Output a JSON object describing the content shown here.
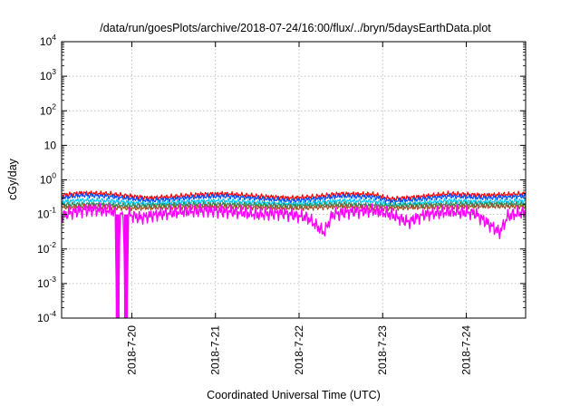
{
  "chart_data": {
    "type": "line",
    "title": "/data/run/goesPlots/archive/2018-07-24/16:00/flux/../bryn/5daysEarthData.plot",
    "xlabel": "Coordinated Universal Time (UTC)",
    "ylabel": "cGy/day",
    "yscale": "log",
    "ylim": [
      0.0001,
      10000
    ],
    "xlim": [
      19.16,
      24.71
    ],
    "grid": true,
    "y_ticks": [
      {
        "value": 0.0001,
        "base": "10",
        "exp": "-4"
      },
      {
        "value": 0.001,
        "base": "10",
        "exp": "-3"
      },
      {
        "value": 0.01,
        "base": "10",
        "exp": "-2"
      },
      {
        "value": 0.1,
        "base": "10",
        "exp": "-1"
      },
      {
        "value": 1,
        "base": "10",
        "exp": "0"
      },
      {
        "value": 10,
        "base": "10",
        "exp": ""
      },
      {
        "value": 100,
        "base": "10",
        "exp": "2"
      },
      {
        "value": 1000,
        "base": "10",
        "exp": "3"
      },
      {
        "value": 10000,
        "base": "10",
        "exp": "4"
      }
    ],
    "x_ticks": [
      {
        "value": 20,
        "label": "2018-7-20"
      },
      {
        "value": 21,
        "label": "2018-7-21"
      },
      {
        "value": 22,
        "label": "2018-7-22"
      },
      {
        "value": 23,
        "label": "2018-7-23"
      },
      {
        "value": 24,
        "label": "2018-7-24"
      }
    ],
    "x_unit": "day of July 2018 (UTC)",
    "series": [
      {
        "color": "#ff0000",
        "values": [
          [
            19.16,
            0.36
          ],
          [
            19.4,
            0.42
          ],
          [
            19.7,
            0.4
          ],
          [
            20.2,
            0.3
          ],
          [
            20.5,
            0.33
          ],
          [
            20.8,
            0.38
          ],
          [
            21.1,
            0.4
          ],
          [
            21.5,
            0.34
          ],
          [
            21.9,
            0.3
          ],
          [
            22.2,
            0.33
          ],
          [
            22.5,
            0.4
          ],
          [
            22.9,
            0.38
          ],
          [
            23.1,
            0.28
          ],
          [
            23.4,
            0.32
          ],
          [
            23.8,
            0.4
          ],
          [
            24.2,
            0.36
          ],
          [
            24.5,
            0.38
          ],
          [
            24.71,
            0.4
          ]
        ]
      },
      {
        "color": "#0050ff",
        "values": [
          [
            19.16,
            0.3
          ],
          [
            19.4,
            0.36
          ],
          [
            19.7,
            0.34
          ],
          [
            20.2,
            0.25
          ],
          [
            20.5,
            0.28
          ],
          [
            20.8,
            0.32
          ],
          [
            21.1,
            0.34
          ],
          [
            21.5,
            0.29
          ],
          [
            21.9,
            0.25
          ],
          [
            22.2,
            0.28
          ],
          [
            22.5,
            0.34
          ],
          [
            22.9,
            0.32
          ],
          [
            23.1,
            0.24
          ],
          [
            23.4,
            0.27
          ],
          [
            23.8,
            0.34
          ],
          [
            24.2,
            0.3
          ],
          [
            24.5,
            0.32
          ],
          [
            24.71,
            0.34
          ]
        ]
      },
      {
        "color": "#00c8ff",
        "values": [
          [
            19.16,
            0.23
          ],
          [
            19.4,
            0.26
          ],
          [
            19.7,
            0.25
          ],
          [
            20.2,
            0.2
          ],
          [
            20.5,
            0.22
          ],
          [
            20.8,
            0.24
          ],
          [
            21.1,
            0.25
          ],
          [
            21.5,
            0.22
          ],
          [
            21.9,
            0.2
          ],
          [
            22.2,
            0.22
          ],
          [
            22.5,
            0.25
          ],
          [
            22.9,
            0.24
          ],
          [
            23.1,
            0.19
          ],
          [
            23.4,
            0.21
          ],
          [
            23.8,
            0.25
          ],
          [
            24.2,
            0.23
          ],
          [
            24.5,
            0.24
          ],
          [
            24.71,
            0.25
          ]
        ]
      },
      {
        "color": "#2e8b57",
        "values": [
          [
            19.16,
            0.19
          ],
          [
            19.5,
            0.2
          ],
          [
            20.0,
            0.18
          ],
          [
            20.5,
            0.19
          ],
          [
            21.0,
            0.2
          ],
          [
            21.5,
            0.19
          ],
          [
            22.0,
            0.18
          ],
          [
            22.5,
            0.2
          ],
          [
            23.0,
            0.18
          ],
          [
            23.5,
            0.19
          ],
          [
            24.0,
            0.2
          ],
          [
            24.71,
            0.2
          ]
        ]
      },
      {
        "color": "#a0522d",
        "values": [
          [
            19.16,
            0.16
          ],
          [
            19.5,
            0.17
          ],
          [
            20.0,
            0.15
          ],
          [
            20.5,
            0.16
          ],
          [
            21.0,
            0.17
          ],
          [
            21.5,
            0.16
          ],
          [
            22.0,
            0.15
          ],
          [
            22.5,
            0.17
          ],
          [
            23.0,
            0.15
          ],
          [
            23.5,
            0.16
          ],
          [
            24.0,
            0.17
          ],
          [
            24.71,
            0.17
          ]
        ]
      },
      {
        "color": "#ff00ff",
        "values": [
          [
            19.16,
            0.09
          ],
          [
            19.3,
            0.12
          ],
          [
            19.5,
            0.14
          ],
          [
            19.7,
            0.13
          ],
          [
            19.8,
            0.12
          ],
          [
            19.82,
            0.0001
          ],
          [
            19.84,
            0.0001
          ],
          [
            19.86,
            0.12
          ],
          [
            19.9,
            0.11
          ],
          [
            19.92,
            0.0001
          ],
          [
            19.94,
            0.0001
          ],
          [
            19.96,
            0.1
          ],
          [
            20.1,
            0.08
          ],
          [
            20.3,
            0.1
          ],
          [
            20.6,
            0.12
          ],
          [
            20.9,
            0.13
          ],
          [
            21.2,
            0.12
          ],
          [
            21.5,
            0.1
          ],
          [
            21.8,
            0.11
          ],
          [
            22.0,
            0.09
          ],
          [
            22.1,
            0.08
          ],
          [
            22.3,
            0.03
          ],
          [
            22.4,
            0.1
          ],
          [
            22.6,
            0.12
          ],
          [
            22.9,
            0.13
          ],
          [
            23.1,
            0.1
          ],
          [
            23.3,
            0.06
          ],
          [
            23.5,
            0.1
          ],
          [
            23.8,
            0.12
          ],
          [
            24.1,
            0.11
          ],
          [
            24.4,
            0.03
          ],
          [
            24.5,
            0.09
          ],
          [
            24.71,
            0.12
          ]
        ]
      }
    ]
  }
}
